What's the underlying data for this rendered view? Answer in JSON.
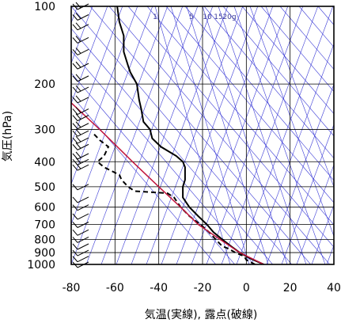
{
  "chart_data": {
    "type": "line",
    "xlabel": "気温(実線), 露点(破線)",
    "ylabel": "気圧(hPa)",
    "xlim": [
      -80,
      40
    ],
    "ylim": [
      1000,
      100
    ],
    "y_scale": "log",
    "x_ticks": [
      "-80",
      "-60",
      "-40",
      "-20",
      "0",
      "20",
      "40"
    ],
    "y_ticks": [
      "100",
      "200",
      "300",
      "400",
      "500",
      "600",
      "700",
      "800",
      "900",
      "1000"
    ],
    "mixing_ratio_labels": [
      "1",
      "5",
      "10",
      "15",
      "20g"
    ],
    "grid": true,
    "colors": {
      "temperature": "#000000",
      "dewpoint": "#000000",
      "parcel": "#c0143c",
      "isotherm_adiabat": "#3a3ad6",
      "grid": "#000000"
    },
    "series": [
      {
        "style": "solid",
        "points": [
          {
            "t": 8,
            "p": 1000
          },
          {
            "t": 2,
            "p": 950
          },
          {
            "t": -3,
            "p": 900
          },
          {
            "t": -7,
            "p": 850
          },
          {
            "t": -11,
            "p": 800
          },
          {
            "t": -15,
            "p": 750
          },
          {
            "t": -18,
            "p": 700
          },
          {
            "t": -22,
            "p": 650
          },
          {
            "t": -26,
            "p": 600
          },
          {
            "t": -29,
            "p": 550
          },
          {
            "t": -29,
            "p": 500
          },
          {
            "t": -28,
            "p": 470
          },
          {
            "t": -28,
            "p": 420
          },
          {
            "t": -29,
            "p": 400
          },
          {
            "t": -32,
            "p": 380
          },
          {
            "t": -39,
            "p": 350
          },
          {
            "t": -43,
            "p": 325
          },
          {
            "t": -44,
            "p": 300
          },
          {
            "t": -47,
            "p": 280
          },
          {
            "t": -48,
            "p": 250
          },
          {
            "t": -49,
            "p": 230
          },
          {
            "t": -50,
            "p": 200
          },
          {
            "t": -53,
            "p": 180
          },
          {
            "t": -54,
            "p": 170
          },
          {
            "t": -56,
            "p": 150
          },
          {
            "t": -56,
            "p": 140
          },
          {
            "t": -56,
            "p": 130
          },
          {
            "t": -58,
            "p": 115
          },
          {
            "t": -59,
            "p": 100
          }
        ]
      },
      {
        "style": "dashed",
        "points": [
          {
            "t": 4,
            "p": 1000
          },
          {
            "t": 0,
            "p": 960
          },
          {
            "t": -1,
            "p": 930
          },
          {
            "t": -5,
            "p": 900
          },
          {
            "t": -8,
            "p": 870
          },
          {
            "t": -11,
            "p": 850
          },
          {
            "t": -14,
            "p": 800
          },
          {
            "t": -17,
            "p": 750
          },
          {
            "t": -21,
            "p": 700
          },
          {
            "t": -26,
            "p": 650
          },
          {
            "t": -30,
            "p": 600
          },
          {
            "t": -33,
            "p": 550
          },
          {
            "t": -36,
            "p": 530
          },
          {
            "t": -51,
            "p": 520
          },
          {
            "t": -54,
            "p": 500
          },
          {
            "t": -57,
            "p": 470
          },
          {
            "t": -58,
            "p": 450
          },
          {
            "t": -65,
            "p": 420
          },
          {
            "t": -68,
            "p": 400
          },
          {
            "t": -65,
            "p": 380
          },
          {
            "t": -63,
            "p": 350
          },
          {
            "t": -67,
            "p": 330
          },
          {
            "t": -70,
            "p": 310
          }
        ]
      },
      {
        "style": "parcel",
        "points": [
          {
            "t": 8,
            "p": 1000
          },
          {
            "t": -3,
            "p": 900
          },
          {
            "t": -12,
            "p": 800
          },
          {
            "t": -22,
            "p": 700
          },
          {
            "t": -30,
            "p": 600
          },
          {
            "t": -40,
            "p": 500
          },
          {
            "t": -52,
            "p": 400
          },
          {
            "t": -67,
            "p": 300
          },
          {
            "t": -84,
            "p": 220
          }
        ]
      }
    ],
    "wind_barbs_hpa": [
      100,
      110,
      120,
      135,
      150,
      170,
      190,
      210,
      230,
      255,
      270,
      290,
      310,
      330,
      350,
      380,
      400,
      420,
      500,
      560,
      600,
      650,
      700,
      750,
      800,
      850,
      900,
      950,
      1000
    ]
  }
}
